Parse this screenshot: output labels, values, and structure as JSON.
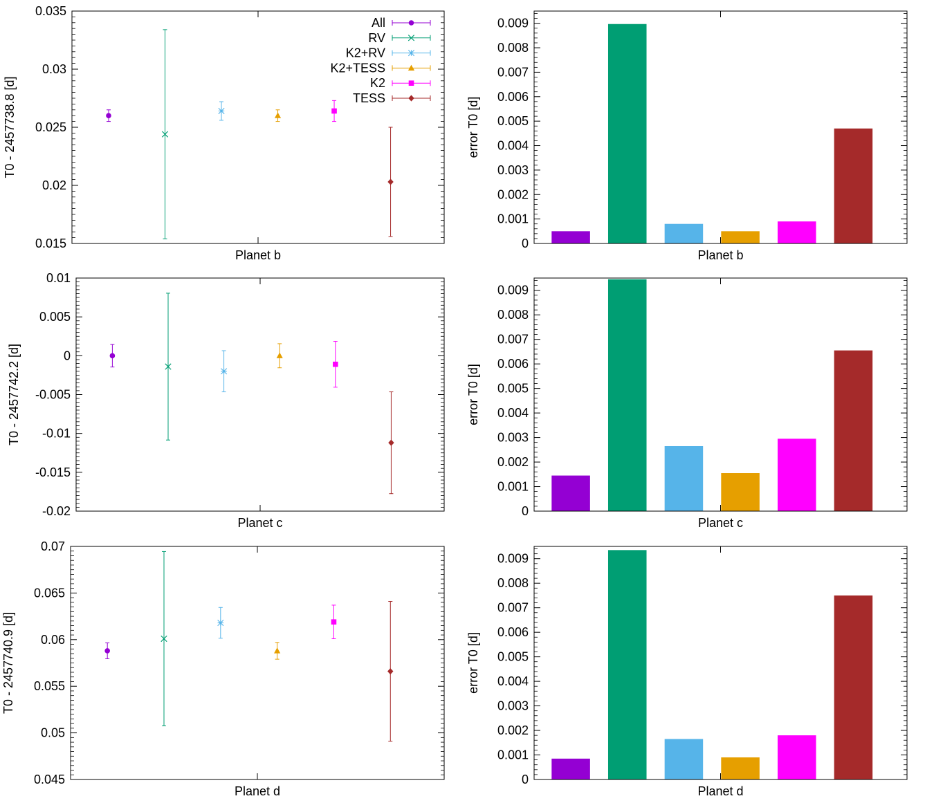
{
  "series_styles": [
    {
      "name": "All",
      "color": "#9400d3",
      "marker": "circle"
    },
    {
      "name": "RV",
      "color": "#009e73",
      "marker": "x"
    },
    {
      "name": "K2+RV",
      "color": "#56b4e9",
      "marker": "star"
    },
    {
      "name": "K2+TESS",
      "color": "#e69f00",
      "marker": "triangle"
    },
    {
      "name": "K2",
      "color": "#ff00ff",
      "marker": "square"
    },
    {
      "name": "TESS",
      "color": "#a52a2a",
      "marker": "diamond"
    }
  ],
  "chart_data": [
    {
      "type": "scatter",
      "subtype": "errorbar",
      "xlabel": "Planet b",
      "ylabel": "T0 - 2457738.8 [d]",
      "ylim": [
        0.015,
        0.035
      ],
      "yticks": [
        0.015,
        0.02,
        0.025,
        0.03,
        0.035
      ],
      "ytick_labels": [
        "0.015",
        "0.02",
        "0.025",
        "0.03",
        "0.035"
      ],
      "legend": "top-right",
      "series": [
        {
          "name": "All",
          "x": 0.5,
          "y": 0.026,
          "err": 0.0005
        },
        {
          "name": "RV",
          "x": 1.5,
          "y": 0.0244,
          "err": 0.009
        },
        {
          "name": "K2+RV",
          "x": 2.5,
          "y": 0.0264,
          "err": 0.0008
        },
        {
          "name": "K2+TESS",
          "x": 3.5,
          "y": 0.026,
          "err": 0.0005
        },
        {
          "name": "K2",
          "x": 4.5,
          "y": 0.0264,
          "err": 0.0009
        },
        {
          "name": "TESS",
          "x": 5.5,
          "y": 0.0203,
          "err": 0.0047
        }
      ]
    },
    {
      "type": "bar",
      "xlabel": "Planet b",
      "ylabel": "error T0 [d]",
      "ylim": [
        0,
        0.0095
      ],
      "yticks": [
        0,
        0.001,
        0.002,
        0.003,
        0.004,
        0.005,
        0.006,
        0.007,
        0.008,
        0.009
      ],
      "ytick_labels": [
        "0",
        "0.001",
        "0.002",
        "0.003",
        "0.004",
        "0.005",
        "0.006",
        "0.007",
        "0.008",
        "0.009"
      ],
      "categories": [
        "All",
        "RV",
        "K2+RV",
        "K2+TESS",
        "K2",
        "TESS"
      ],
      "values": [
        0.0005,
        0.00897,
        0.0008,
        0.0005,
        0.0009,
        0.0047
      ]
    },
    {
      "type": "scatter",
      "subtype": "errorbar",
      "xlabel": "Planet c",
      "ylabel": "T0 - 2457742.2 [d]",
      "ylim": [
        -0.02,
        0.01
      ],
      "yticks": [
        -0.02,
        -0.015,
        -0.01,
        -0.005,
        0,
        0.005,
        0.01
      ],
      "ytick_labels": [
        "-0.02",
        "-0.015",
        "-0.01",
        "-0.005",
        "0",
        "0.005",
        "0.01"
      ],
      "series": [
        {
          "name": "All",
          "x": 0.5,
          "y": 0.0,
          "err": 0.00145
        },
        {
          "name": "RV",
          "x": 1.5,
          "y": -0.0014,
          "err": 0.00945
        },
        {
          "name": "K2+RV",
          "x": 2.5,
          "y": -0.002,
          "err": 0.00265
        },
        {
          "name": "K2+TESS",
          "x": 3.5,
          "y": 0.0,
          "err": 0.00155
        },
        {
          "name": "K2",
          "x": 4.5,
          "y": -0.0011,
          "err": 0.00295
        },
        {
          "name": "TESS",
          "x": 5.5,
          "y": -0.0112,
          "err": 0.00655
        }
      ]
    },
    {
      "type": "bar",
      "xlabel": "Planet c",
      "ylabel": "error T0 [d]",
      "ylim": [
        0,
        0.0095
      ],
      "yticks": [
        0,
        0.001,
        0.002,
        0.003,
        0.004,
        0.005,
        0.006,
        0.007,
        0.008,
        0.009
      ],
      "ytick_labels": [
        "0",
        "0.001",
        "0.002",
        "0.003",
        "0.004",
        "0.005",
        "0.006",
        "0.007",
        "0.008",
        "0.009"
      ],
      "categories": [
        "All",
        "RV",
        "K2+RV",
        "K2+TESS",
        "K2",
        "TESS"
      ],
      "values": [
        0.00145,
        0.00945,
        0.00265,
        0.00155,
        0.00295,
        0.00655
      ]
    },
    {
      "type": "scatter",
      "subtype": "errorbar",
      "xlabel": "Planet d",
      "ylabel": "T0 - 2457740.9 [d]",
      "ylim": [
        0.045,
        0.07
      ],
      "yticks": [
        0.045,
        0.05,
        0.055,
        0.06,
        0.065,
        0.07
      ],
      "ytick_labels": [
        "0.045",
        "0.05",
        "0.055",
        "0.06",
        "0.065",
        "0.07"
      ],
      "series": [
        {
          "name": "All",
          "x": 0.5,
          "y": 0.0588,
          "err": 0.00085
        },
        {
          "name": "RV",
          "x": 1.5,
          "y": 0.0601,
          "err": 0.00935
        },
        {
          "name": "K2+RV",
          "x": 2.5,
          "y": 0.0618,
          "err": 0.00165
        },
        {
          "name": "K2+TESS",
          "x": 3.5,
          "y": 0.0588,
          "err": 0.0009
        },
        {
          "name": "K2",
          "x": 4.5,
          "y": 0.0619,
          "err": 0.0018
        },
        {
          "name": "TESS",
          "x": 5.5,
          "y": 0.0566,
          "err": 0.0075
        }
      ]
    },
    {
      "type": "bar",
      "xlabel": "Planet d",
      "ylabel": "error T0 [d]",
      "ylim": [
        0,
        0.0095
      ],
      "yticks": [
        0,
        0.001,
        0.002,
        0.003,
        0.004,
        0.005,
        0.006,
        0.007,
        0.008,
        0.009
      ],
      "ytick_labels": [
        "0",
        "0.001",
        "0.002",
        "0.003",
        "0.004",
        "0.005",
        "0.006",
        "0.007",
        "0.008",
        "0.009"
      ],
      "categories": [
        "All",
        "RV",
        "K2+RV",
        "K2+TESS",
        "K2",
        "TESS"
      ],
      "values": [
        0.00085,
        0.00935,
        0.00165,
        0.0009,
        0.0018,
        0.0075
      ]
    }
  ]
}
